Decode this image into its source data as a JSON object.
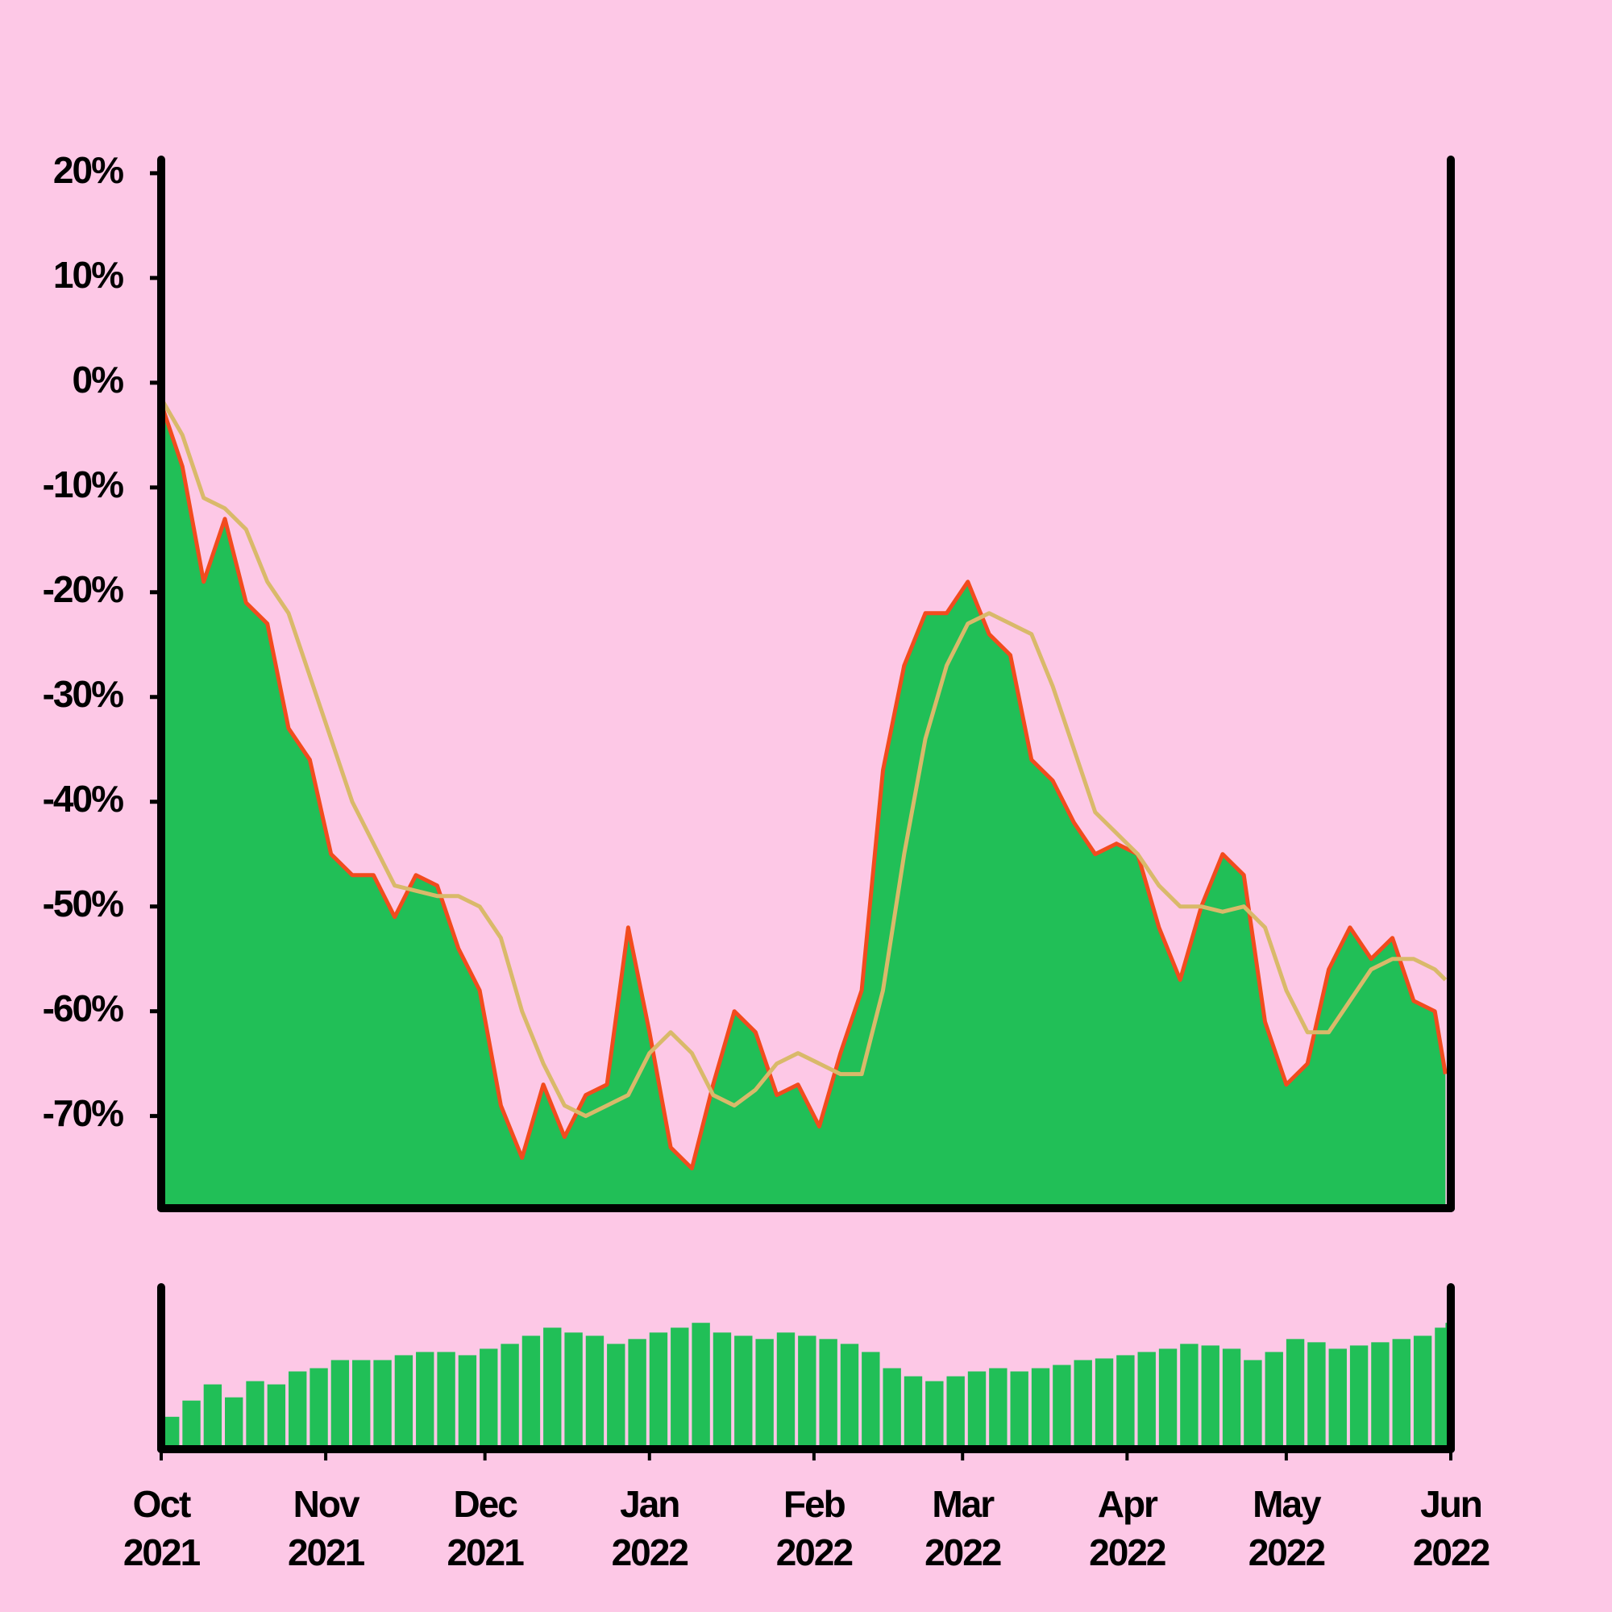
{
  "chart_data": [
    {
      "type": "area",
      "x": [
        0,
        4,
        8,
        12,
        16,
        20,
        24,
        28,
        32,
        36,
        40,
        44,
        48,
        52,
        56,
        60,
        64,
        68,
        72,
        76,
        80,
        84,
        88,
        92,
        96,
        100,
        104,
        108,
        112,
        116,
        120,
        124,
        128,
        132,
        136,
        140,
        144,
        148,
        152,
        156,
        160,
        164,
        168,
        172,
        176,
        180,
        184,
        188,
        192,
        196,
        200,
        204,
        208,
        212,
        216,
        220,
        224,
        228,
        232,
        236,
        240,
        242
      ],
      "xlim": [
        0,
        243
      ],
      "ylim": [
        -78.8,
        21.3
      ],
      "yticks": [
        {
          "value": 20,
          "label": "20%"
        },
        {
          "value": 10,
          "label": "10%"
        },
        {
          "value": 0,
          "label": "0%"
        },
        {
          "value": -10,
          "label": "-10%"
        },
        {
          "value": -20,
          "label": "-20%"
        },
        {
          "value": -30,
          "label": "-30%"
        },
        {
          "value": -40,
          "label": "-40%"
        },
        {
          "value": -50,
          "label": "-50%"
        },
        {
          "value": -60,
          "label": "-60%"
        },
        {
          "value": -70,
          "label": "-70%"
        }
      ],
      "series": [
        {
          "type": "area",
          "color": "#21bf57",
          "line_color": "#f24b1e",
          "values": [
            -2,
            -8,
            -19,
            -13,
            -21,
            -23,
            -33,
            -36,
            -45,
            -47,
            -47,
            -51,
            -47,
            -48,
            -54,
            -58,
            -69,
            -74,
            -67,
            -72,
            -68,
            -67,
            -52,
            -62,
            -73,
            -75,
            -67,
            -60,
            -62,
            -68,
            -67,
            -71,
            -64,
            -58,
            -37,
            -27,
            -22,
            -22,
            -19,
            -24,
            -26,
            -36,
            -38,
            -42,
            -45,
            -44,
            -45,
            -52,
            -57,
            -50,
            -45,
            -47,
            -61,
            -67,
            -65,
            -56,
            -52,
            -55,
            -53,
            -59,
            -60,
            -66
          ]
        },
        {
          "type": "line",
          "color": "#d9b96a",
          "values": [
            -1.5,
            -5,
            -11,
            -12,
            -14,
            -19,
            -22,
            -28,
            -34,
            -40,
            -44,
            -48,
            -48.5,
            -49,
            -49,
            -50,
            -53,
            -60,
            -65,
            -69,
            -70,
            -69,
            -68,
            -64,
            -62,
            -64,
            -68,
            -69,
            -67.5,
            -65,
            -64,
            -65,
            -66,
            -66,
            -58,
            -45,
            -34,
            -27,
            -23,
            -22,
            -23,
            -24,
            -29,
            -35,
            -41,
            -43,
            -45,
            -48,
            -50,
            -50,
            -50.5,
            -50,
            -52,
            -58,
            -62,
            -62,
            -59,
            -56,
            -55,
            -55,
            -56,
            -57
          ]
        }
      ]
    },
    {
      "type": "bar",
      "x": [
        0,
        4,
        8,
        12,
        16,
        20,
        24,
        28,
        32,
        36,
        40,
        44,
        48,
        52,
        56,
        60,
        64,
        68,
        72,
        76,
        80,
        84,
        88,
        92,
        96,
        100,
        104,
        108,
        112,
        116,
        120,
        124,
        128,
        132,
        136,
        140,
        144,
        148,
        152,
        156,
        160,
        164,
        168,
        172,
        176,
        180,
        184,
        188,
        192,
        196,
        200,
        204,
        208,
        212,
        216,
        220,
        224,
        228,
        232,
        236,
        240,
        242
      ],
      "xlim": [
        0,
        243
      ],
      "ylim": [
        0,
        100
      ],
      "color": "#21bf57",
      "values": [
        20,
        30,
        40,
        32,
        42,
        40,
        48,
        50,
        55,
        55,
        55,
        58,
        60,
        60,
        58,
        62,
        65,
        70,
        75,
        72,
        70,
        65,
        68,
        72,
        75,
        78,
        72,
        70,
        68,
        72,
        70,
        68,
        65,
        60,
        50,
        45,
        42,
        45,
        48,
        50,
        48,
        50,
        52,
        55,
        56,
        58,
        60,
        62,
        65,
        64,
        62,
        55,
        60,
        68,
        66,
        62,
        64,
        66,
        68,
        70,
        75,
        78
      ],
      "xticks": [
        {
          "value": 0,
          "label": "Oct\n2021"
        },
        {
          "value": 31,
          "label": "Nov\n2021"
        },
        {
          "value": 61,
          "label": "Dec\n2021"
        },
        {
          "value": 92,
          "label": "Jan\n2022"
        },
        {
          "value": 123,
          "label": "Feb\n2022"
        },
        {
          "value": 151,
          "label": "Mar\n2022"
        },
        {
          "value": 182,
          "label": "Apr\n2022"
        },
        {
          "value": 212,
          "label": "May\n2022"
        },
        {
          "value": 243,
          "label": "Jun\n2022"
        }
      ]
    }
  ]
}
